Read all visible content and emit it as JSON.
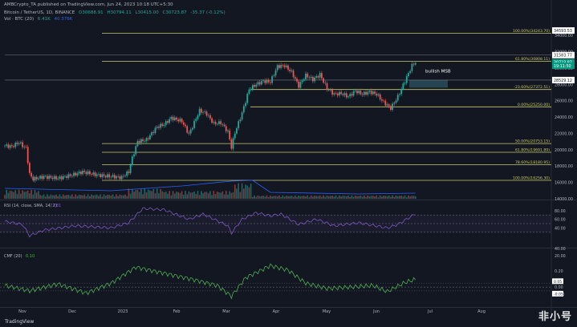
{
  "header": {
    "published": "AMBCrypto_TA published on TradingView.com, Jun 24, 2023 10:18 UTC+5:30",
    "symbol": "Bitcoin / TetherUS, 1D, BINANCE",
    "ohlc": [
      "O30688.91",
      "H30794.11",
      "L30415.00",
      "C30723.87",
      "-35.37 (-0.12%)"
    ],
    "vol_label": "Vol · BTC (20)",
    "vol_values": [
      "6.41K",
      "40.376K"
    ]
  },
  "price_panel": {
    "fib_levels": [
      {
        "label": "100.00%(34243.70)",
        "price": 34243.7
      },
      {
        "label": "61.80%(30808.11)",
        "price": 30808.11
      },
      {
        "label": "-23.60%(27372.51)",
        "price": 27372.51
      },
      {
        "label": "0.00%(25250.00)",
        "price": 25250.0
      },
      {
        "label": "50.00%(20753.15)",
        "price": 20753.15
      },
      {
        "label": "61.80%(19691.89)",
        "price": 19691.89
      },
      {
        "label": "78.60%(18180.95)",
        "price": 18180.95
      },
      {
        "label": "100.00%(16256.30)",
        "price": 16256.3
      }
    ],
    "axis_ticks": [
      "34000.00",
      "32000.00",
      "30000.00",
      "28000.00",
      "26000.00",
      "24000.00",
      "22000.00",
      "20000.00",
      "18000.00",
      "16000.00",
      "14000.00"
    ],
    "price_tags": [
      {
        "text": "34593.53",
        "price": 34593.53,
        "bg": "#ffffff",
        "fg": "#131722"
      },
      {
        "text": "31583.77",
        "price": 31583.77,
        "bg": "#ffffff",
        "fg": "#131722"
      },
      {
        "text": "30723.87",
        "price": 30723.87,
        "bg": "#089981",
        "fg": "#ffffff"
      },
      {
        "text": "19:11:50",
        "price": 30280,
        "bg": "#089981",
        "fg": "#ffffff"
      },
      {
        "text": "28529.12",
        "price": 28529.12,
        "bg": "#ffffff",
        "fg": "#131722"
      }
    ],
    "annotation": "bullish MSB",
    "orderblock": {
      "low": 27600,
      "high": 28529.12
    }
  },
  "rsi": {
    "label": "RSI (14, close, SMA, 14, 2)",
    "value": "72.81",
    "ticks": [
      "80.00",
      "60.00",
      "40.00"
    ]
  },
  "cmf": {
    "label": "CMF (20)",
    "value": "0.10",
    "ticks": [
      "40.00",
      "20.00",
      "0.20",
      "0.00",
      "-0.20"
    ],
    "tags": [
      "0.05",
      "-0.05"
    ]
  },
  "time_axis": [
    "Nov",
    "Dec",
    "2023",
    "Feb",
    "Mar",
    "Apr",
    "May",
    "Jun",
    "Jul",
    "Aug"
  ],
  "footer": {
    "brand": "TradingView",
    "watermark": "非小号"
  },
  "colors": {
    "up": "#26a69a",
    "down": "#ef5350",
    "fib": "#c8c86e",
    "rsi": "#7e57c2",
    "cmf": "#4caf50",
    "ma": "#2962ff"
  },
  "chart_data": {
    "type": "candlestick",
    "title": "Bitcoin / TetherUS, 1D, BINANCE",
    "x_range": [
      "2022-10-25",
      "2023-08-20"
    ],
    "y_range": [
      14000,
      34600
    ],
    "close_path": [
      [
        0,
        20500
      ],
      [
        4,
        20400
      ],
      [
        8,
        20900
      ],
      [
        10,
        20500
      ],
      [
        12,
        20200
      ],
      [
        14,
        17000
      ],
      [
        16,
        16400
      ],
      [
        22,
        16700
      ],
      [
        30,
        16500
      ],
      [
        38,
        16900
      ],
      [
        44,
        17300
      ],
      [
        50,
        17000
      ],
      [
        56,
        16800
      ],
      [
        62,
        16700
      ],
      [
        66,
        16600
      ],
      [
        70,
        17300
      ],
      [
        72,
        19000
      ],
      [
        75,
        21000
      ],
      [
        80,
        21200
      ],
      [
        86,
        22800
      ],
      [
        90,
        23100
      ],
      [
        94,
        23900
      ],
      [
        100,
        23500
      ],
      [
        104,
        21900
      ],
      [
        110,
        24800
      ],
      [
        114,
        24400
      ],
      [
        118,
        23200
      ],
      [
        122,
        23300
      ],
      [
        126,
        22200
      ],
      [
        128,
        20300
      ],
      [
        130,
        22100
      ],
      [
        134,
        24500
      ],
      [
        138,
        27400
      ],
      [
        142,
        28000
      ],
      [
        146,
        28400
      ],
      [
        150,
        28300
      ],
      [
        154,
        30200
      ],
      [
        158,
        30300
      ],
      [
        162,
        29500
      ],
      [
        166,
        27800
      ],
      [
        170,
        29100
      ],
      [
        174,
        28600
      ],
      [
        178,
        29200
      ],
      [
        182,
        27500
      ],
      [
        186,
        26800
      ],
      [
        190,
        26900
      ],
      [
        194,
        26500
      ],
      [
        198,
        27200
      ],
      [
        202,
        26800
      ],
      [
        206,
        27100
      ],
      [
        210,
        26800
      ],
      [
        214,
        25800
      ],
      [
        218,
        25100
      ],
      [
        222,
        26500
      ],
      [
        226,
        28400
      ],
      [
        230,
        30300
      ],
      [
        232,
        30723
      ]
    ],
    "rsi_path": [
      [
        0,
        55
      ],
      [
        10,
        48
      ],
      [
        14,
        22
      ],
      [
        22,
        35
      ],
      [
        40,
        45
      ],
      [
        60,
        40
      ],
      [
        70,
        52
      ],
      [
        78,
        85
      ],
      [
        90,
        82
      ],
      [
        104,
        60
      ],
      [
        112,
        72
      ],
      [
        126,
        45
      ],
      [
        128,
        28
      ],
      [
        134,
        60
      ],
      [
        142,
        75
      ],
      [
        150,
        68
      ],
      [
        156,
        72
      ],
      [
        166,
        48
      ],
      [
        176,
        60
      ],
      [
        186,
        45
      ],
      [
        200,
        52
      ],
      [
        216,
        40
      ],
      [
        222,
        48
      ],
      [
        232,
        72.8
      ]
    ],
    "cmf_path": [
      [
        0,
        0.02
      ],
      [
        14,
        -0.05
      ],
      [
        30,
        0.04
      ],
      [
        46,
        -0.08
      ],
      [
        60,
        0.05
      ],
      [
        74,
        0.26
      ],
      [
        90,
        0.18
      ],
      [
        106,
        0.1
      ],
      [
        120,
        0.02
      ],
      [
        128,
        -0.12
      ],
      [
        136,
        0.12
      ],
      [
        150,
        0.28
      ],
      [
        160,
        0.22
      ],
      [
        170,
        0.05
      ],
      [
        182,
        -0.02
      ],
      [
        196,
        0.0
      ],
      [
        208,
        0.02
      ],
      [
        216,
        -0.06
      ],
      [
        226,
        0.06
      ],
      [
        232,
        0.1
      ]
    ]
  }
}
